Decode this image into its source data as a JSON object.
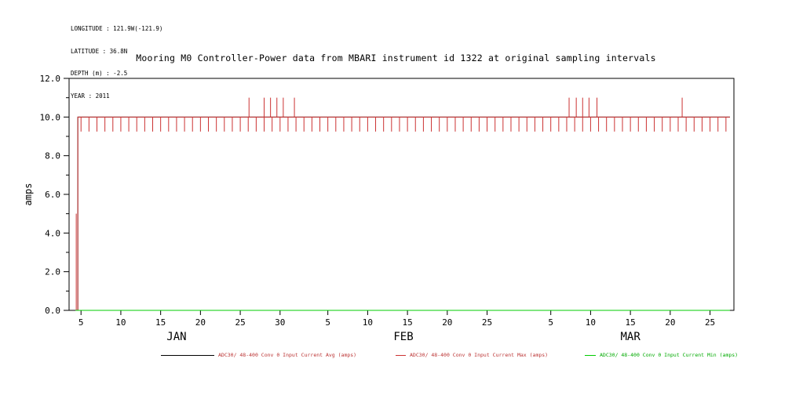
{
  "header": {
    "info_lines": [
      "LONGITUDE : 121.9W(-121.9)",
      "LATITUDE : 36.8N",
      "DEPTH (m) : -2.5",
      "YEAR : 2011"
    ]
  },
  "title": "Mooring M0 Controller-Power data from MBARI instrument id 1322 at original sampling intervals",
  "legend": {
    "items": [
      {
        "label": "ADC30/ 48-400 Conv 0 Input Current Avg (amps)",
        "swatch_color": "#000000",
        "text_color": "#bb3333"
      },
      {
        "label": "ADC30/ 48-400 Conv 0 Input Current Max (amps)",
        "swatch_color": "#cc3333",
        "text_color": "#bb3333"
      },
      {
        "label": "ADC30/ 48-400 Conv 0 Input Current Min (amps)",
        "swatch_color": "#00cc00",
        "text_color": "#00aa00"
      }
    ]
  },
  "chart_data": {
    "type": "line",
    "title": "Mooring M0 Controller-Power data from MBARI instrument id 1322 at original sampling intervals",
    "xlabel": "",
    "ylabel": "amps",
    "ylim": [
      0.0,
      12.0
    ],
    "yticks": [
      0.0,
      2.0,
      4.0,
      6.0,
      8.0,
      10.0,
      12.0
    ],
    "yticks_minor": [
      1.0,
      3.0,
      5.0,
      7.0,
      9.0,
      11.0
    ],
    "grid": false,
    "legend_position": "bottom",
    "x_axis": {
      "unit": "day of year 2011",
      "range": [
        3.5,
        87
      ],
      "ticks": [
        {
          "day": 5,
          "label": "5"
        },
        {
          "day": 10,
          "label": "10"
        },
        {
          "day": 15,
          "label": "15"
        },
        {
          "day": 20,
          "label": "20"
        },
        {
          "day": 25,
          "label": "25"
        },
        {
          "day": 30,
          "label": "30"
        },
        {
          "day": 36,
          "label": "5"
        },
        {
          "day": 41,
          "label": "10"
        },
        {
          "day": 46,
          "label": "15"
        },
        {
          "day": 51,
          "label": "20"
        },
        {
          "day": 56,
          "label": "25"
        },
        {
          "day": 64,
          "label": "5"
        },
        {
          "day": 69,
          "label": "10"
        },
        {
          "day": 74,
          "label": "15"
        },
        {
          "day": 79,
          "label": "20"
        },
        {
          "day": 84,
          "label": "25"
        }
      ],
      "month_labels": [
        {
          "label": "JAN",
          "day": 17
        },
        {
          "label": "FEB",
          "day": 45.5
        },
        {
          "label": "MAR",
          "day": 74
        }
      ]
    },
    "series": [
      {
        "name": "ADC30/ 48-400 Conv 0 Input Current Avg (amps)",
        "short_name": "avg",
        "color": "#000000",
        "profile": {
          "type": "baseline",
          "baseline": 10.0,
          "start_day": 4.6,
          "end_day": 86.5
        }
      },
      {
        "name": "ADC30/ 48-400 Conv 0 Input Current Max (amps)",
        "short_name": "max",
        "color": "#cc3333",
        "profile": {
          "type": "baseline",
          "baseline": 10.0,
          "start_day": 4.6,
          "end_day": 86.5,
          "initial_spike": {
            "day": 4.4,
            "value": 5.0
          },
          "daily_dips": {
            "from_day": 5,
            "to_day": 86,
            "value": 9.25
          },
          "spikes": {
            "value": 11.0,
            "days": [
              26.1,
              28.0,
              28.8,
              29.6,
              30.4,
              31.8,
              66.3,
              67.2,
              68.0,
              68.8,
              69.8,
              80.5
            ]
          }
        }
      },
      {
        "name": "ADC30/ 48-400 Conv 0 Input Current Min (amps)",
        "short_name": "min",
        "color": "#00cc00",
        "profile": {
          "type": "constant",
          "value": 0.0,
          "start_day": 4.3,
          "end_day": 86.5
        }
      }
    ]
  }
}
